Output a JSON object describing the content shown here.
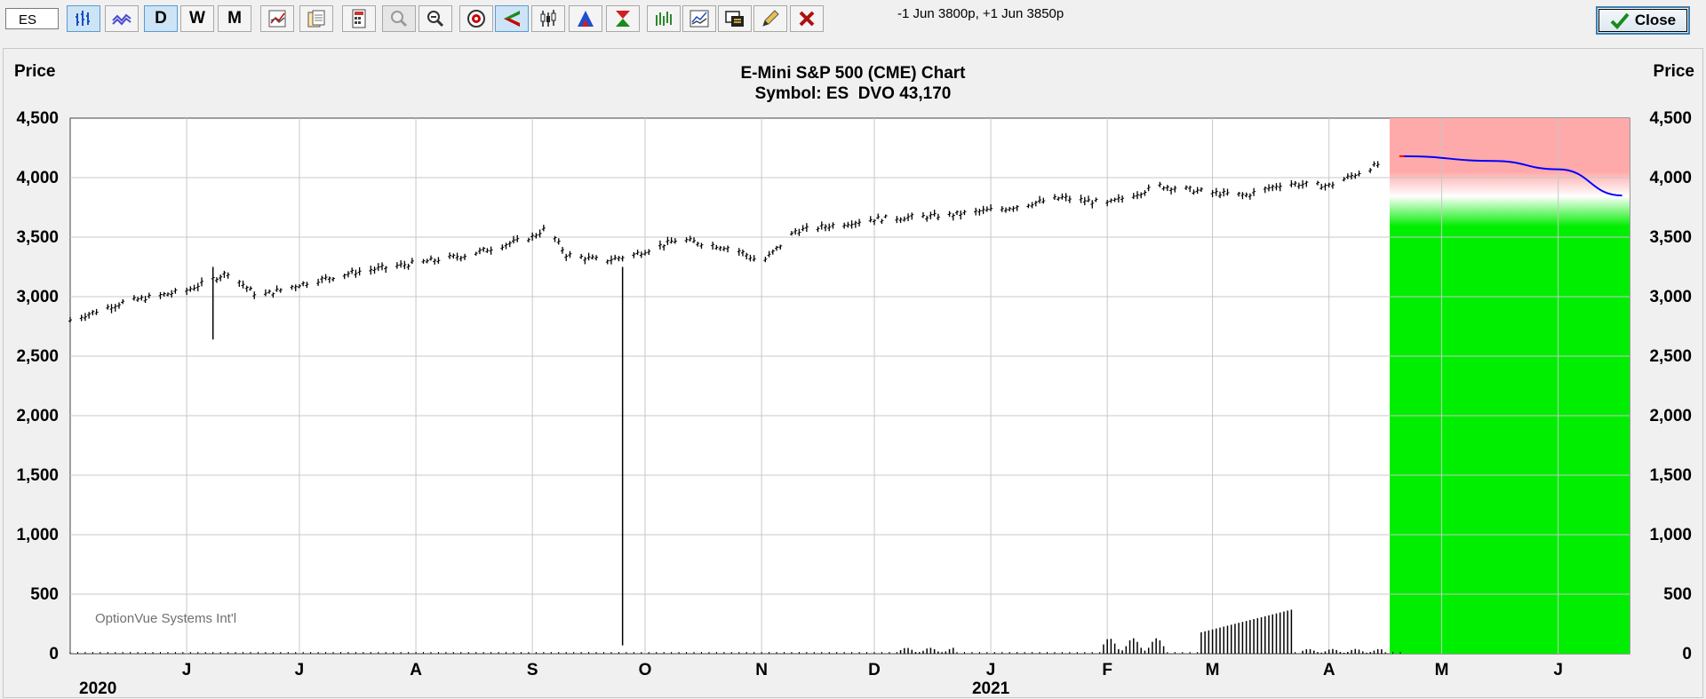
{
  "toolbar": {
    "symbol_value": "ES",
    "buttons": {
      "daily": "D",
      "weekly": "W",
      "monthly": "M"
    },
    "spread_text": "-1 Jun 3800p, +1 Jun 3850p",
    "close_label": "Close"
  },
  "icons": [
    "bar-chart-icon",
    "line-chart-icon",
    "study-icon",
    "copy-icon",
    "calculator-icon",
    "zoom-in-icon",
    "zoom-out-icon",
    "target-icon",
    "left-arrow-icon",
    "candle-icon",
    "triangle-icon",
    "hourglass-icon",
    "multi-bar-icon",
    "multi-line-icon",
    "screen-icon",
    "pencil-icon",
    "delete-icon",
    "checkmark-icon"
  ],
  "colors": {
    "profit_zone": "#00ee00",
    "loss_zone": "#ffaaaa",
    "forecast_line": "#0000ff"
  },
  "chart_data": {
    "type": "bar",
    "title": "E-Mini S&P 500 (CME) Chart",
    "subtitle": "Symbol: ES  DVO 43,170",
    "ylabel_left": "Price",
    "ylabel_right": "Price",
    "ylim": [
      0,
      4500
    ],
    "yticks": [
      "0",
      "500",
      "1,000",
      "1,500",
      "2,000",
      "2,500",
      "3,000",
      "3,500",
      "4,000",
      "4,500"
    ],
    "month_labels": [
      "J",
      "J",
      "A",
      "S",
      "O",
      "N",
      "D",
      "J",
      "F",
      "M",
      "A",
      "M",
      "J"
    ],
    "year_labels": [
      "2020",
      "2021"
    ],
    "watermark": "OptionVue Systems Int'l",
    "grid": true,
    "price_series": [
      {
        "x": "2020-05-01",
        "close": 2800
      },
      {
        "x": "2020-05-15",
        "close": 2950
      },
      {
        "x": "2020-06-01",
        "close": 3050
      },
      {
        "x": "2020-06-12",
        "close": 3200
      },
      {
        "x": "2020-06-20",
        "close": 3000
      },
      {
        "x": "2020-07-01",
        "close": 3100
      },
      {
        "x": "2020-07-15",
        "close": 3200
      },
      {
        "x": "2020-08-01",
        "close": 3280
      },
      {
        "x": "2020-08-15",
        "close": 3350
      },
      {
        "x": "2020-09-01",
        "close": 3500
      },
      {
        "x": "2020-09-05",
        "close": 3580
      },
      {
        "x": "2020-09-10",
        "close": 3350
      },
      {
        "x": "2020-09-20",
        "close": 3300
      },
      {
        "x": "2020-09-28",
        "close": 3350
      },
      {
        "x": "2020-10-10",
        "close": 3480
      },
      {
        "x": "2020-10-25",
        "close": 3400
      },
      {
        "x": "2020-11-01",
        "close": 3280
      },
      {
        "x": "2020-11-10",
        "close": 3550
      },
      {
        "x": "2020-12-01",
        "close": 3650
      },
      {
        "x": "2020-12-20",
        "close": 3680
      },
      {
        "x": "2021-01-05",
        "close": 3740
      },
      {
        "x": "2021-01-20",
        "close": 3830
      },
      {
        "x": "2021-02-01",
        "close": 3780
      },
      {
        "x": "2021-02-15",
        "close": 3930
      },
      {
        "x": "2021-03-01",
        "close": 3870
      },
      {
        "x": "2021-03-10",
        "close": 3850
      },
      {
        "x": "2021-03-20",
        "close": 3950
      },
      {
        "x": "2021-04-01",
        "close": 3930
      },
      {
        "x": "2021-04-15",
        "close": 4120
      }
    ],
    "spikes": [
      {
        "x": "2020-06-08",
        "low": 2640
      },
      {
        "x": "2020-09-25",
        "low": 70
      }
    ],
    "volume_series": [
      {
        "x": "2020-12-10",
        "value": 50
      },
      {
        "x": "2021-02-01",
        "value": 130
      },
      {
        "x": "2021-03-01",
        "value": 300
      },
      {
        "x": "2021-03-18",
        "value": 370
      }
    ],
    "forecast_line": [
      {
        "x": "2021-04-21",
        "y": 4180
      },
      {
        "x": "2021-05-15",
        "y": 4140
      },
      {
        "x": "2021-06-01",
        "y": 4070
      },
      {
        "x": "2021-06-18",
        "y": 3850
      }
    ]
  }
}
